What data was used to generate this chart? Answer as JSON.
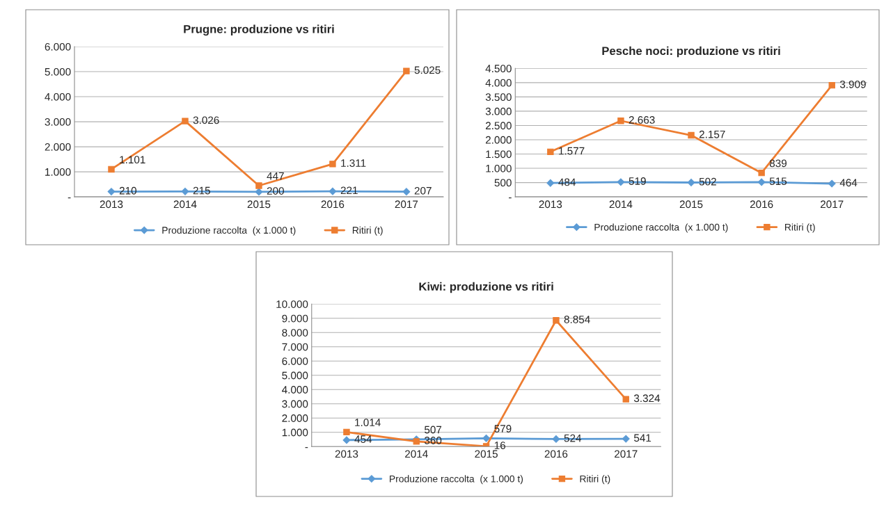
{
  "chart_data": [
    {
      "type": "line",
      "title": "Prugne: produzione vs ritiri",
      "categories": [
        "2013",
        "2014",
        "2015",
        "2016",
        "2017"
      ],
      "series": [
        {
          "name": "Produzione raccolta  (x 1.000 t)",
          "color": "#5b9bd5",
          "marker": "diamond",
          "values": [
            210,
            215,
            200,
            221,
            207
          ],
          "value_labels": [
            "210",
            "215",
            "200",
            "221",
            "207"
          ]
        },
        {
          "name": "Ritiri (t)",
          "color": "#ed7d31",
          "marker": "square",
          "values": [
            1101,
            3026,
            447,
            1311,
            5025
          ],
          "value_labels": [
            "1.101",
            "3.026",
            "447",
            "1.311",
            "5.025"
          ]
        }
      ],
      "ylim": [
        0,
        6000
      ],
      "yticks": [
        {
          "value": 0,
          "label": "-"
        },
        {
          "value": 1000,
          "label": "1.000"
        },
        {
          "value": 2000,
          "label": "2.000"
        },
        {
          "value": 3000,
          "label": "3.000"
        },
        {
          "value": 4000,
          "label": "4.000"
        },
        {
          "value": 5000,
          "label": "5.000"
        },
        {
          "value": 6000,
          "label": "6.000"
        }
      ],
      "grid": "y",
      "legend": "bottom",
      "line_style": "solid"
    },
    {
      "type": "line",
      "title": "Pesche noci: produzione vs ritiri",
      "categories": [
        "2013",
        "2014",
        "2015",
        "2016",
        "2017"
      ],
      "series": [
        {
          "name": "Produzione raccolta  (x 1.000 t)",
          "color": "#5b9bd5",
          "marker": "diamond",
          "values": [
            484,
            519,
            502,
            515,
            464
          ],
          "value_labels": [
            "484",
            "519",
            "502",
            "515",
            "464"
          ]
        },
        {
          "name": "Ritiri (t)",
          "color": "#ed7d31",
          "marker": "square",
          "values": [
            1577,
            2663,
            2157,
            839,
            3909
          ],
          "value_labels": [
            "1.577",
            "2.663",
            "2.157",
            "839",
            "3.909"
          ]
        }
      ],
      "ylim": [
        0,
        4500
      ],
      "yticks": [
        {
          "value": 0,
          "label": "-"
        },
        500,
        {
          "value": 1000,
          "label": "1.000"
        },
        {
          "value": 1500,
          "label": "1.500"
        },
        {
          "value": 2000,
          "label": "2.000"
        },
        {
          "value": 2500,
          "label": "2.500"
        },
        {
          "value": 3000,
          "label": "3.000"
        },
        {
          "value": 3500,
          "label": "3.500"
        },
        {
          "value": 4000,
          "label": "4.000"
        },
        {
          "value": 4500,
          "label": "4.500"
        }
      ],
      "grid": "y",
      "legend": "bottom",
      "line_style": "solid"
    },
    {
      "type": "line",
      "title": "Kiwi: produzione vs ritiri",
      "categories": [
        "2013",
        "2014",
        "2015",
        "2016",
        "2017"
      ],
      "series": [
        {
          "name": "Produzione raccolta  (x 1.000 t)",
          "color": "#5b9bd5",
          "marker": "diamond",
          "values": [
            454,
            507,
            579,
            524,
            541
          ],
          "value_labels": [
            "454",
            "507",
            "579",
            "524",
            "541"
          ]
        },
        {
          "name": "Ritiri (t)",
          "color": "#ed7d31",
          "marker": "square",
          "values": [
            1014,
            360,
            16,
            8854,
            3324
          ],
          "value_labels": [
            "1.014",
            "360",
            "16",
            "8.854",
            "3.324"
          ]
        }
      ],
      "ylim": [
        0,
        10000
      ],
      "yticks": [
        {
          "value": 0,
          "label": "-"
        },
        {
          "value": 1000,
          "label": "1.000"
        },
        {
          "value": 2000,
          "label": "2.000"
        },
        {
          "value": 3000,
          "label": "3.000"
        },
        {
          "value": 4000,
          "label": "4.000"
        },
        {
          "value": 5000,
          "label": "5.000"
        },
        {
          "value": 6000,
          "label": "6.000"
        },
        {
          "value": 7000,
          "label": "7.000"
        },
        {
          "value": 8000,
          "label": "8.000"
        },
        {
          "value": 9000,
          "label": "9.000"
        },
        {
          "value": 10000,
          "label": "10.000"
        }
      ],
      "grid": "y",
      "legend": "bottom",
      "line_style": "solid"
    }
  ]
}
